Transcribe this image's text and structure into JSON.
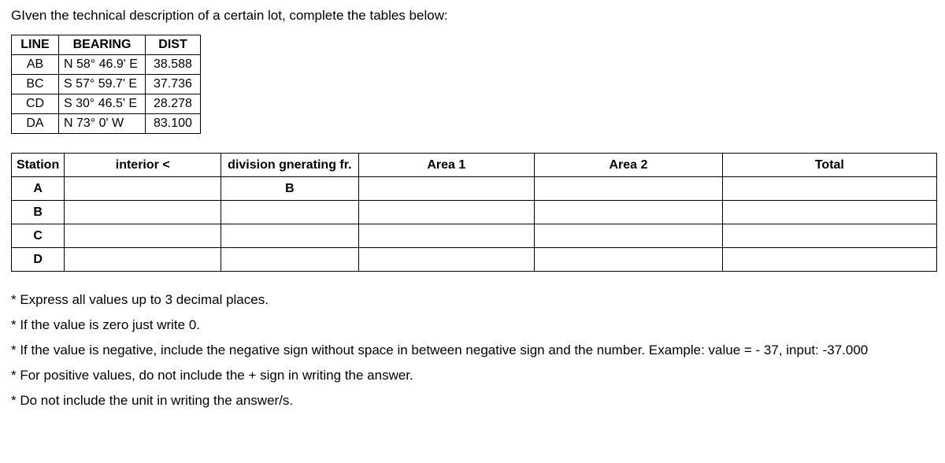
{
  "instruction": "GIven the technical description of a certain lot, complete the tables below:",
  "table1": {
    "headers": {
      "line": "LINE",
      "bearing": "BEARING",
      "dist": "DIST"
    },
    "rows": [
      {
        "line": "AB",
        "bearing": "N 58° 46.9' E",
        "dist": "38.588"
      },
      {
        "line": "BC",
        "bearing": "S 57° 59.7' E",
        "dist": "37.736"
      },
      {
        "line": "CD",
        "bearing": "S 30° 46.5' E",
        "dist": "28.278"
      },
      {
        "line": "DA",
        "bearing": "N 73° 0' W",
        "dist": "83.100"
      }
    ]
  },
  "table2": {
    "headers": {
      "station": "Station",
      "interior": "interior <",
      "division": "division gnerating fr.",
      "area1": "Area 1",
      "area2": "Area 2",
      "total": "Total"
    },
    "first_division_value": "B",
    "stations": [
      "A",
      "B",
      "C",
      "D"
    ]
  },
  "notes": [
    "* Express all values up to 3 decimal  places.",
    "* If the value is zero just write 0.",
    "* If the value is negative, include the negative sign without space in between negative sign and the number. Example: value = - 37, input: -37.000",
    "* For positive values, do not include the + sign in writing the answer.",
    "* Do not include the unit in writing the answer/s."
  ]
}
